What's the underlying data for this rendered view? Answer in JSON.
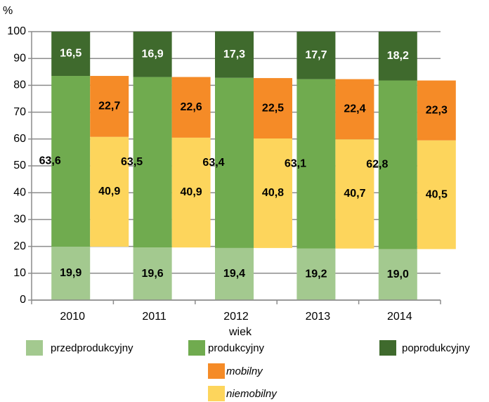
{
  "chart_data": {
    "type": "stacked_bar",
    "y_label": "%",
    "legend_title": "wiek",
    "categories": [
      "2010",
      "2011",
      "2012",
      "2013",
      "2014"
    ],
    "ylim": [
      0,
      100
    ],
    "yticks": [
      0,
      10,
      20,
      30,
      40,
      50,
      60,
      70,
      80,
      90,
      100
    ],
    "grid": true,
    "series": [
      {
        "name": "przedprodukcyjny",
        "color": "#a3c98f",
        "stack": 1,
        "label_color": "#000000",
        "values": [
          19.9,
          19.6,
          19.4,
          19.2,
          19.0
        ],
        "value_labels": [
          "19,9",
          "19,6",
          "19,4",
          "19,2",
          "19,0"
        ]
      },
      {
        "name": "produkcyjny",
        "color": "#70ab4f",
        "stack": 1,
        "label_color": "#000000",
        "values": [
          63.6,
          63.5,
          63.4,
          63.1,
          62.8
        ],
        "value_labels": [
          "63,6",
          "63,5",
          "63,4",
          "63,1",
          "62,8"
        ]
      },
      {
        "name": "poprodukcyjny",
        "color": "#3f6a2d",
        "stack": 1,
        "label_color": "#ffffff",
        "values": [
          16.5,
          16.9,
          17.3,
          17.7,
          18.2
        ],
        "value_labels": [
          "16,5",
          "16,9",
          "17,3",
          "17,7",
          "18,2"
        ]
      },
      {
        "name": "niemobilny",
        "color": "#fdd55c",
        "stack": 2,
        "label_color": "#000000",
        "values": [
          40.9,
          40.9,
          40.8,
          40.7,
          40.5
        ],
        "value_labels": [
          "40,9",
          "40,9",
          "40,8",
          "40,7",
          "40,5"
        ]
      },
      {
        "name": "mobilny",
        "color": "#f58b27",
        "stack": 2,
        "label_color": "#000000",
        "values": [
          22.7,
          22.6,
          22.5,
          22.4,
          22.3
        ],
        "value_labels": [
          "22,7",
          "22,6",
          "22,5",
          "22,4",
          "22,3"
        ]
      }
    ]
  }
}
